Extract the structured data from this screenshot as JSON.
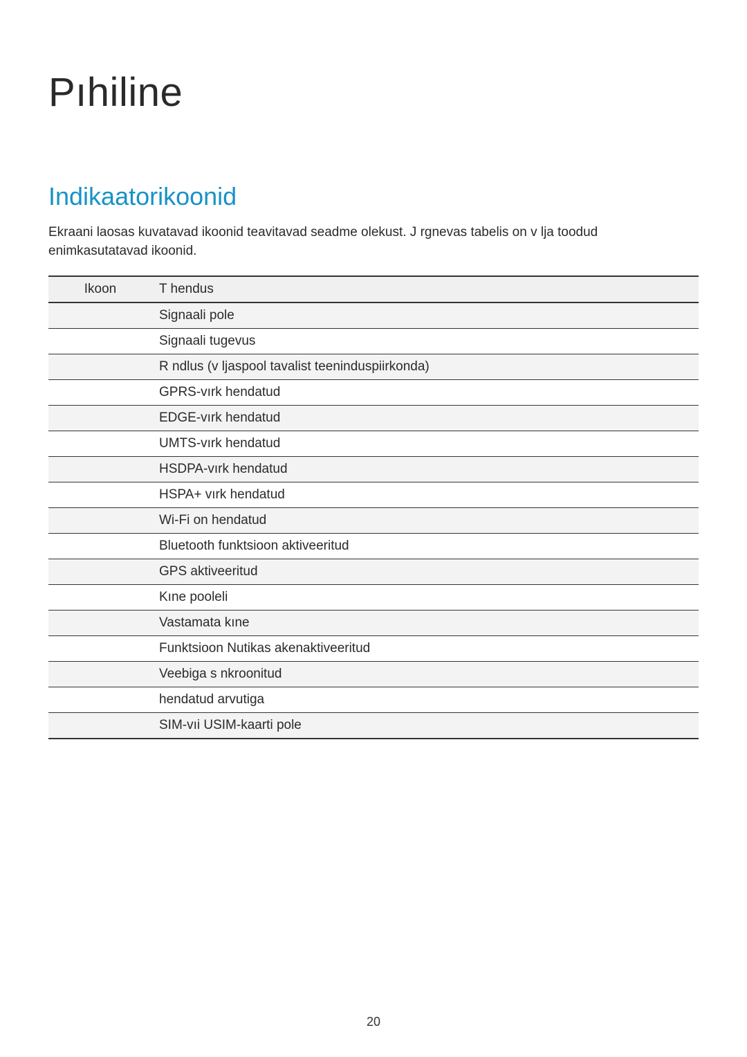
{
  "page": {
    "title": "Pıhiline",
    "page_number": "20"
  },
  "section": {
    "heading": "Indikaatorikoonid",
    "intro": "Ekraani  laosas kuvatavad ikoonid teavitavad seadme olekust. J rgnevas tabelis on v lja toodud enimkasutatavad ikoonid."
  },
  "table": {
    "columns": [
      "Ikoon",
      "T hendus"
    ],
    "rows": [
      {
        "icon": "",
        "meaning": "Signaali pole"
      },
      {
        "icon": "",
        "meaning": "Signaali tugevus"
      },
      {
        "icon": "",
        "meaning": "R ndlus (v ljaspool tavalist teeninduspiirkonda)"
      },
      {
        "icon": "",
        "meaning": "GPRS-vırk  hendatud"
      },
      {
        "icon": "",
        "meaning": "EDGE-vırk  hendatud"
      },
      {
        "icon": "",
        "meaning": "UMTS-vırk  hendatud"
      },
      {
        "icon": "",
        "meaning": "HSDPA-vırk  hendatud"
      },
      {
        "icon": "",
        "meaning": "HSPA+ vırk  hendatud"
      },
      {
        "icon": "",
        "meaning": "Wi-Fi on  hendatud"
      },
      {
        "icon": "",
        "meaning": "Bluetooth funktsioon aktiveeritud"
      },
      {
        "icon": "",
        "meaning": "GPS aktiveeritud"
      },
      {
        "icon": "",
        "meaning": "Kıne pooleli"
      },
      {
        "icon": "",
        "meaning": "Vastamata kıne"
      },
      {
        "icon": "",
        "meaning": "Funktsioon Nutikas akenaktiveeritud"
      },
      {
        "icon": "",
        "meaning": "Veebiga s nkroonitud"
      },
      {
        "icon": "",
        "meaning": " hendatud arvutiga"
      },
      {
        "icon": "",
        "meaning": "SIM-vıi USIM-kaarti pole"
      }
    ],
    "border_color": "#333333",
    "alt_row_bg": "#f3f3f3",
    "header_bg": "#f0f0f0"
  },
  "colors": {
    "heading": "#1792c7",
    "text": "#2a2a2a",
    "background": "#ffffff"
  },
  "typography": {
    "title_fontsize": 58,
    "section_heading_fontsize": 36,
    "body_fontsize": 19
  }
}
